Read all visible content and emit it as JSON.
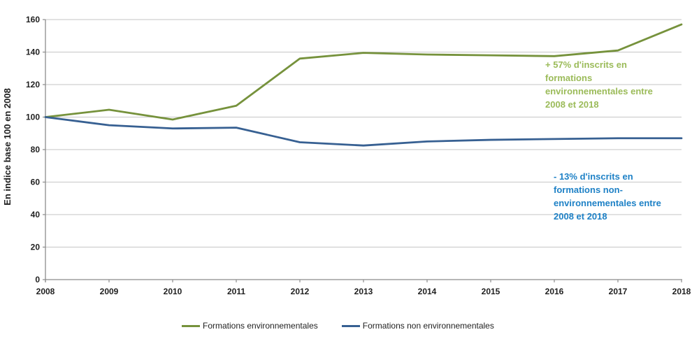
{
  "chart_data": {
    "type": "line",
    "title": "",
    "x_labels": [
      "2008",
      "2009",
      "2010",
      "2011",
      "2012",
      "2013",
      "2014",
      "2015",
      "2016",
      "2017",
      "2018"
    ],
    "series": [
      {
        "name": "Formations environnementales",
        "color": "#76923C",
        "values": [
          100,
          104.5,
          98.5,
          107,
          136,
          139.5,
          138.5,
          138,
          137.5,
          141,
          157
        ]
      },
      {
        "name": "Formations non environnementales",
        "color": "#376092",
        "values": [
          100,
          95,
          93,
          93.5,
          84.5,
          82.5,
          85,
          86,
          86.5,
          87,
          87
        ]
      }
    ],
    "xlabel": "",
    "ylabel": "En indice base 100 en 2008",
    "ylim": [
      0,
      160
    ],
    "yticks": [
      0,
      20,
      40,
      60,
      80,
      100,
      120,
      140,
      160
    ],
    "grid": true,
    "legend_position": "bottom"
  },
  "annotations": {
    "green": {
      "color": "#9BBB59",
      "lines": [
        "+ 57% d'inscrits en",
        "formations",
        "environnementales entre",
        "2008 et 2018"
      ]
    },
    "blue": {
      "color": "#1E81C6",
      "lines": [
        "- 13% d'inscrits en",
        "formations non-",
        "environnementales entre",
        "2008 et 2018"
      ]
    }
  },
  "colors": {
    "gridline": "#C6C6C6",
    "axis": "#8C8C8C"
  }
}
